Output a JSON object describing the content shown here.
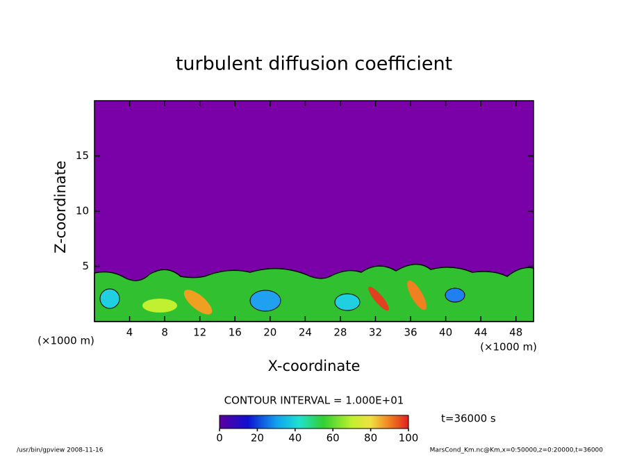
{
  "chart_data": {
    "type": "contour",
    "title": "turbulent diffusion coefficient",
    "xlabel": "X-coordinate",
    "ylabel": "Z-coordinate",
    "x_unit_labels": [
      "(×1000 m)",
      "(×1000 m)"
    ],
    "xlim": [
      0,
      50
    ],
    "xticks": [
      4,
      8,
      12,
      16,
      20,
      24,
      28,
      32,
      36,
      40,
      44,
      48
    ],
    "ylim": [
      0,
      20
    ],
    "yticks": [
      5,
      10,
      15
    ],
    "contour_interval_label": "CONTOUR INTERVAL = 1.000E+01",
    "time_label": "t=36000 s",
    "colorbar": {
      "lim": [
        0,
        100
      ],
      "ticks": [
        0,
        20,
        40,
        60,
        80,
        100
      ]
    },
    "footer_left": "/usr/bin/gpview  2008-11-16",
    "footer_right": "MarsCond_Km.nc@Km,x=0:50000,z=0:20000,t=36000"
  }
}
